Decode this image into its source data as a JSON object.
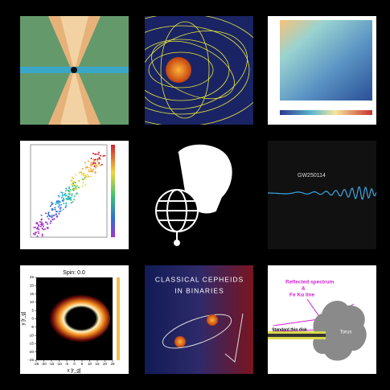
{
  "panels": {
    "black_hole": {
      "title": "Spin: 0.0",
      "xlabel": "x [r_g]",
      "ylabel": "y [r_g]",
      "xticks": [
        -25,
        -20,
        -15,
        -10,
        -5,
        0,
        5,
        10,
        15,
        20,
        25
      ],
      "yticks": [
        25,
        20,
        15,
        10,
        5,
        0,
        -5,
        -10,
        -15,
        -20,
        -25
      ]
    },
    "cepheids": {
      "line1": "CLASSICAL CEPHEIDS",
      "line2": "IN BINARIES"
    },
    "gravitational_wave": {
      "title": "GW250114"
    },
    "agn": {
      "label1": "Reflected spectrum",
      "label2": "&",
      "label3": "Fe Kα line",
      "disk": "Standard thin disk",
      "torus": "Torus"
    }
  }
}
